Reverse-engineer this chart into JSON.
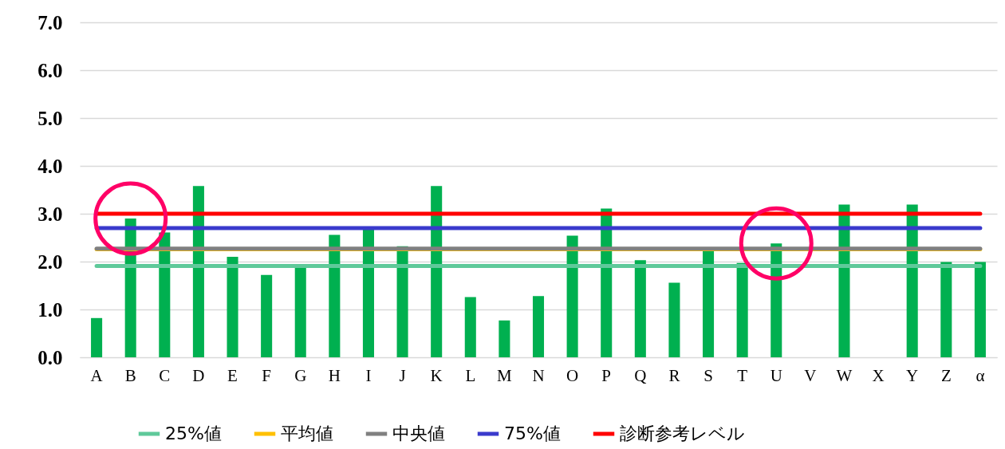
{
  "chart_data": {
    "type": "bar",
    "categories": [
      "A",
      "B",
      "C",
      "D",
      "E",
      "F",
      "G",
      "H",
      "I",
      "J",
      "K",
      "L",
      "M",
      "N",
      "O",
      "P",
      "Q",
      "R",
      "S",
      "T",
      "U",
      "V",
      "W",
      "X",
      "Y",
      "Z",
      "α"
    ],
    "values": [
      0.82,
      2.9,
      2.61,
      3.58,
      2.1,
      1.72,
      1.87,
      2.56,
      2.67,
      2.32,
      3.58,
      1.26,
      0.77,
      1.28,
      2.54,
      3.11,
      2.03,
      1.56,
      2.22,
      1.97,
      2.38,
      null,
      3.19,
      null,
      3.19,
      1.99,
      1.99
    ],
    "color": "#00b050",
    "ylim": [
      0,
      7
    ],
    "yticks": [
      {
        "value": 0,
        "label": "0.0"
      },
      {
        "value": 1,
        "label": "1.0"
      },
      {
        "value": 2,
        "label": "2.0"
      },
      {
        "value": 3,
        "label": "3.0"
      },
      {
        "value": 4,
        "label": "4.0"
      },
      {
        "value": 5,
        "label": "5.0"
      },
      {
        "value": 6,
        "label": "6.0"
      },
      {
        "value": 7,
        "label": "7.0"
      }
    ],
    "grid": "y",
    "legend": "bottom",
    "ref_lines": [
      {
        "axis": "y",
        "value": 1.91,
        "label": "25%値",
        "color": "#5fc99a"
      },
      {
        "axis": "y",
        "value": 2.26,
        "label": "平均値",
        "color": "#ffc000"
      },
      {
        "axis": "y",
        "value": 2.27,
        "label": "中央値",
        "color": "#808080"
      },
      {
        "axis": "y",
        "value": 2.7,
        "label": "75%値",
        "color": "#3a3acc"
      },
      {
        "axis": "y",
        "value": 3.0,
        "label": "診断参考レベル",
        "color": "#ff0000"
      }
    ]
  }
}
